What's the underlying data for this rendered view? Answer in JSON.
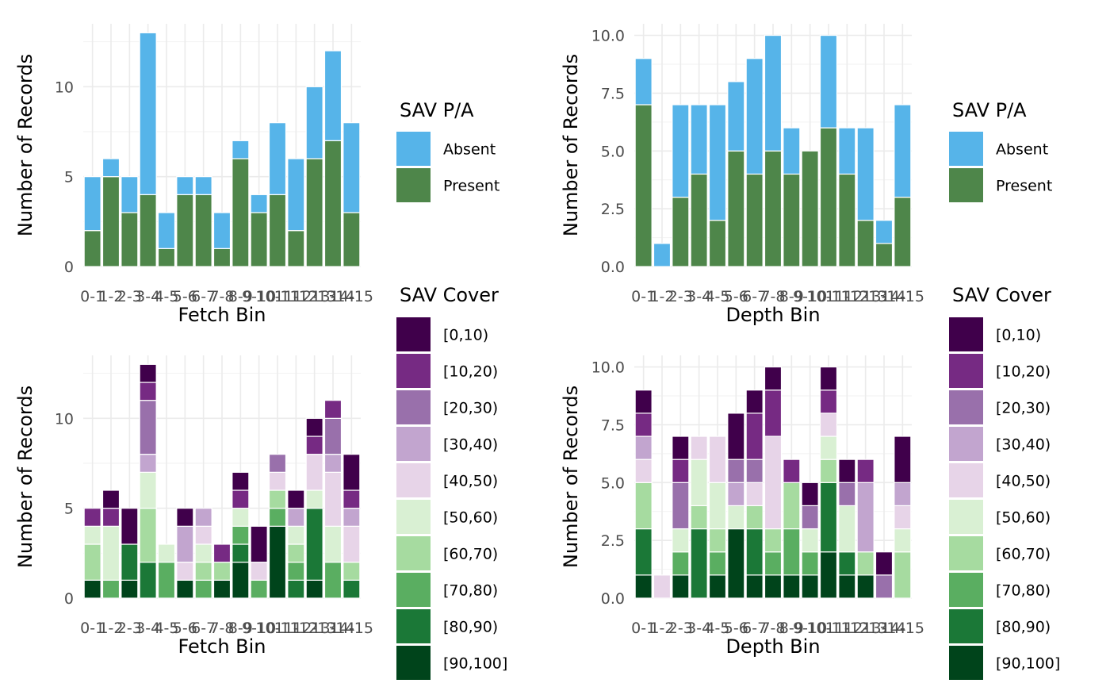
{
  "chart_data": [
    {
      "type": "bar",
      "stacked": true,
      "xlabel": "Fetch Bin",
      "ylabel": "Number of Records",
      "ylim": [
        0,
        13.5
      ],
      "yticks": [
        "0",
        "5",
        "10"
      ],
      "ytick_values": [
        0,
        5,
        10
      ],
      "grid": true,
      "categories": [
        "0-1",
        "1-2",
        "2-3",
        "3-4",
        "4-5",
        "5-6",
        "6-7",
        "7-8",
        "8-9",
        "9-10",
        "10-11",
        "11-12",
        "12-13",
        "13-14",
        "14-15"
      ],
      "legend": {
        "title": "SAV P/A",
        "position": "right"
      },
      "series": [
        {
          "name": "Present",
          "color": "#4e864a",
          "values": [
            2,
            5,
            3,
            4,
            1,
            4,
            4,
            1,
            6,
            3,
            4,
            2,
            6,
            7,
            3
          ]
        },
        {
          "name": "Absent",
          "color": "#56b4e9",
          "values": [
            3,
            1,
            2,
            9,
            2,
            1,
            1,
            2,
            1,
            1,
            4,
            4,
            4,
            5,
            5
          ]
        }
      ]
    },
    {
      "type": "bar",
      "stacked": true,
      "xlabel": "Depth Bin",
      "ylabel": "Number of Records",
      "ylim": [
        0,
        10.5
      ],
      "yticks": [
        "0.0",
        "2.5",
        "5.0",
        "7.5",
        "10.0"
      ],
      "ytick_values": [
        0,
        2.5,
        5,
        7.5,
        10
      ],
      "grid": true,
      "categories": [
        "0-1",
        "1-2",
        "2-3",
        "3-4",
        "4-5",
        "5-6",
        "6-7",
        "7-8",
        "8-9",
        "9-10",
        "10-11",
        "11-12",
        "12-13",
        "13-14",
        "14-15"
      ],
      "legend": {
        "title": "SAV P/A",
        "position": "right"
      },
      "series": [
        {
          "name": "Present",
          "color": "#4e864a",
          "values": [
            7,
            0,
            3,
            4,
            2,
            5,
            4,
            5,
            4,
            5,
            6,
            4,
            2,
            1,
            3
          ]
        },
        {
          "name": "Absent",
          "color": "#56b4e9",
          "values": [
            2,
            1,
            4,
            3,
            5,
            3,
            5,
            5,
            2,
            0,
            4,
            2,
            4,
            1,
            4
          ]
        }
      ]
    },
    {
      "type": "bar",
      "stacked": true,
      "xlabel": "Fetch Bin",
      "ylabel": "Number of Records",
      "ylim": [
        0,
        13.5
      ],
      "yticks": [
        "0",
        "5",
        "10"
      ],
      "ytick_values": [
        0,
        5,
        10
      ],
      "grid": true,
      "categories": [
        "0-1",
        "1-2",
        "2-3",
        "3-4",
        "4-5",
        "5-6",
        "6-7",
        "7-8",
        "8-9",
        "9-10",
        "10-11",
        "11-12",
        "12-13",
        "13-14",
        "14-15"
      ],
      "legend": {
        "title": "SAV Cover",
        "position": "right"
      },
      "series": [
        {
          "name": "[90,100]",
          "color": "#00441b",
          "values": [
            1,
            0,
            1,
            0,
            0,
            1,
            0,
            1,
            2,
            0,
            4,
            0,
            1,
            0,
            0
          ]
        },
        {
          "name": "[80,90)",
          "color": "#1b7837",
          "values": [
            0,
            0,
            2,
            2,
            0,
            0,
            0,
            0,
            1,
            0,
            0,
            1,
            4,
            0,
            1
          ]
        },
        {
          "name": "[70,80)",
          "color": "#5aae61",
          "values": [
            0,
            1,
            0,
            0,
            2,
            0,
            1,
            0,
            1,
            1,
            1,
            1,
            0,
            2,
            0
          ]
        },
        {
          "name": "[60,70)",
          "color": "#a6dba0",
          "values": [
            2,
            0,
            0,
            3,
            0,
            0,
            1,
            1,
            0,
            0,
            1,
            1,
            0,
            0,
            1
          ]
        },
        {
          "name": "[50,60)",
          "color": "#d9f0d3",
          "values": [
            1,
            3,
            0,
            2,
            1,
            0,
            1,
            0,
            1,
            0,
            0,
            1,
            1,
            2,
            0
          ]
        },
        {
          "name": "[40,50)",
          "color": "#e7d4e8",
          "values": [
            0,
            0,
            0,
            0,
            0,
            1,
            1,
            0,
            0,
            1,
            1,
            0,
            2,
            3,
            2
          ]
        },
        {
          "name": "[30,40)",
          "color": "#c2a5cf",
          "values": [
            0,
            0,
            0,
            1,
            0,
            2,
            1,
            0,
            0,
            0,
            0,
            1,
            0,
            1,
            1
          ]
        },
        {
          "name": "[20,30)",
          "color": "#9970ab",
          "values": [
            0,
            0,
            0,
            3,
            0,
            0,
            0,
            0,
            0,
            0,
            1,
            0,
            0,
            2,
            0
          ]
        },
        {
          "name": "[10,20)",
          "color": "#762a83",
          "values": [
            1,
            1,
            0,
            1,
            0,
            0,
            0,
            1,
            1,
            0,
            0,
            0,
            1,
            1,
            1
          ]
        },
        {
          "name": "[0,10)",
          "color": "#40004b",
          "values": [
            0,
            1,
            2,
            1,
            0,
            1,
            0,
            0,
            1,
            2,
            0,
            1,
            1,
            0,
            2
          ]
        }
      ]
    },
    {
      "type": "bar",
      "stacked": true,
      "xlabel": "Depth Bin",
      "ylabel": "Number of Records",
      "ylim": [
        0,
        10.5
      ],
      "yticks": [
        "0.0",
        "2.5",
        "5.0",
        "7.5",
        "10.0"
      ],
      "ytick_values": [
        0,
        2.5,
        5,
        7.5,
        10
      ],
      "grid": true,
      "categories": [
        "0-1",
        "1-2",
        "2-3",
        "3-4",
        "4-5",
        "5-6",
        "6-7",
        "7-8",
        "8-9",
        "9-10",
        "10-11",
        "11-12",
        "12-13",
        "13-14",
        "14-15"
      ],
      "legend": {
        "title": "SAV Cover",
        "position": "right"
      },
      "series": [
        {
          "name": "[90,100]",
          "color": "#00441b",
          "values": [
            1,
            0,
            1,
            0,
            1,
            3,
            1,
            1,
            1,
            1,
            2,
            1,
            1,
            0,
            0
          ]
        },
        {
          "name": "[80,90)",
          "color": "#1b7837",
          "values": [
            2,
            0,
            0,
            3,
            0,
            0,
            2,
            0,
            0,
            0,
            3,
            1,
            0,
            0,
            0
          ]
        },
        {
          "name": "[70,80)",
          "color": "#5aae61",
          "values": [
            0,
            0,
            1,
            0,
            1,
            0,
            0,
            1,
            2,
            1,
            0,
            0,
            0,
            0,
            0
          ]
        },
        {
          "name": "[60,70)",
          "color": "#a6dba0",
          "values": [
            2,
            0,
            0,
            1,
            1,
            0,
            1,
            1,
            2,
            0,
            1,
            0,
            1,
            0,
            2
          ]
        },
        {
          "name": "[50,60)",
          "color": "#d9f0d3",
          "values": [
            0,
            0,
            1,
            2,
            2,
            1,
            0,
            0,
            0,
            1,
            1,
            2,
            0,
            0,
            1
          ]
        },
        {
          "name": "[40,50)",
          "color": "#e7d4e8",
          "values": [
            1,
            1,
            0,
            1,
            2,
            0,
            1,
            4,
            0,
            0,
            1,
            0,
            0,
            0,
            1
          ]
        },
        {
          "name": "[30,40)",
          "color": "#c2a5cf",
          "values": [
            1,
            0,
            0,
            0,
            0,
            1,
            0,
            0,
            0,
            0,
            0,
            0,
            3,
            0,
            1
          ]
        },
        {
          "name": "[20,30)",
          "color": "#9970ab",
          "values": [
            0,
            0,
            2,
            0,
            0,
            1,
            1,
            0,
            0,
            1,
            0,
            1,
            0,
            1,
            0
          ]
        },
        {
          "name": "[10,20)",
          "color": "#762a83",
          "values": [
            1,
            0,
            1,
            0,
            0,
            0,
            2,
            2,
            1,
            0,
            1,
            0,
            1,
            0,
            0
          ]
        },
        {
          "name": "[0,10)",
          "color": "#40004b",
          "values": [
            1,
            0,
            1,
            0,
            0,
            2,
            1,
            1,
            0,
            1,
            1,
            1,
            0,
            1,
            2
          ]
        }
      ]
    }
  ]
}
